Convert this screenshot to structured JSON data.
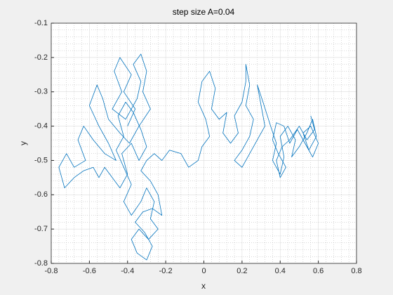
{
  "chart_data": {
    "type": "line",
    "title": "step size A=0.04",
    "x_label": "x",
    "y_label": "y",
    "x": [
      -0.4,
      -0.36,
      -0.42,
      -0.38,
      -0.44,
      -0.47,
      -0.43,
      -0.48,
      -0.41,
      -0.35,
      -0.33,
      -0.37,
      -0.33,
      -0.3,
      -0.32,
      -0.28,
      -0.34,
      -0.39,
      -0.44,
      -0.5,
      -0.53,
      -0.56,
      -0.6,
      -0.55,
      -0.5,
      -0.46,
      -0.52,
      -0.58,
      -0.63,
      -0.66,
      -0.62,
      -0.68,
      -0.72,
      -0.76,
      -0.73,
      -0.68,
      -0.63,
      -0.58,
      -0.55,
      -0.52,
      -0.48,
      -0.44,
      -0.4,
      -0.43,
      -0.38,
      -0.34,
      -0.3,
      -0.33,
      -0.37,
      -0.41,
      -0.45,
      -0.42,
      -0.46,
      -0.42,
      -0.38,
      -0.42,
      -0.38,
      -0.33,
      -0.3,
      -0.26,
      -0.28,
      -0.24,
      -0.29,
      -0.34,
      -0.38,
      -0.35,
      -0.3,
      -0.27,
      -0.31,
      -0.36,
      -0.32,
      -0.27,
      -0.22,
      -0.24,
      -0.28,
      -0.33,
      -0.3,
      -0.26,
      -0.22,
      -0.18,
      -0.12,
      -0.08,
      -0.03,
      -0.01,
      0.03,
      0.01,
      -0.03,
      -0.01,
      0.03,
      0.06,
      0.04,
      0.08,
      0.12,
      0.1,
      0.14,
      0.18,
      0.16,
      0.2,
      0.22,
      0.22,
      0.24,
      0.22,
      0.26,
      0.24,
      0.2,
      0.16,
      0.2,
      0.24,
      0.28,
      0.32,
      0.3,
      0.28,
      0.31,
      0.35,
      0.38,
      0.36,
      0.4,
      0.42,
      0.4,
      0.44,
      0.48,
      0.46,
      0.5,
      0.54,
      0.57,
      0.59,
      0.55,
      0.52,
      0.56,
      0.6,
      0.57,
      0.53,
      0.49,
      0.45,
      0.42,
      0.38,
      0.36,
      0.39,
      0.43,
      0.4,
      0.38,
      0.41,
      0.45,
      0.5,
      0.54,
      0.58,
      0.56
    ],
    "series": [
      {
        "color": "#0072bd",
        "values": [
          -0.4,
          -0.35,
          -0.3,
          -0.25,
          -0.2,
          -0.24,
          -0.3,
          -0.35,
          -0.38,
          -0.32,
          -0.27,
          -0.22,
          -0.19,
          -0.24,
          -0.3,
          -0.35,
          -0.4,
          -0.45,
          -0.42,
          -0.38,
          -0.32,
          -0.28,
          -0.34,
          -0.4,
          -0.45,
          -0.5,
          -0.48,
          -0.44,
          -0.4,
          -0.44,
          -0.5,
          -0.52,
          -0.48,
          -0.52,
          -0.58,
          -0.55,
          -0.53,
          -0.52,
          -0.55,
          -0.52,
          -0.55,
          -0.58,
          -0.54,
          -0.48,
          -0.45,
          -0.5,
          -0.46,
          -0.41,
          -0.36,
          -0.33,
          -0.37,
          -0.43,
          -0.47,
          -0.52,
          -0.57,
          -0.62,
          -0.66,
          -0.62,
          -0.58,
          -0.62,
          -0.67,
          -0.7,
          -0.73,
          -0.7,
          -0.73,
          -0.77,
          -0.79,
          -0.75,
          -0.71,
          -0.68,
          -0.65,
          -0.64,
          -0.66,
          -0.6,
          -0.56,
          -0.53,
          -0.5,
          -0.48,
          -0.5,
          -0.47,
          -0.48,
          -0.52,
          -0.5,
          -0.46,
          -0.43,
          -0.38,
          -0.33,
          -0.27,
          -0.24,
          -0.29,
          -0.35,
          -0.38,
          -0.36,
          -0.42,
          -0.45,
          -0.42,
          -0.37,
          -0.33,
          -0.27,
          -0.22,
          -0.28,
          -0.34,
          -0.38,
          -0.43,
          -0.47,
          -0.5,
          -0.52,
          -0.48,
          -0.44,
          -0.4,
          -0.34,
          -0.28,
          -0.33,
          -0.4,
          -0.45,
          -0.5,
          -0.54,
          -0.49,
          -0.43,
          -0.4,
          -0.44,
          -0.49,
          -0.46,
          -0.42,
          -0.38,
          -0.43,
          -0.47,
          -0.42,
          -0.4,
          -0.45,
          -0.49,
          -0.45,
          -0.41,
          -0.45,
          -0.4,
          -0.39,
          -0.44,
          -0.48,
          -0.52,
          -0.55,
          -0.5,
          -0.46,
          -0.44,
          -0.4,
          -0.44,
          -0.41,
          -0.37
        ]
      }
    ],
    "xlim": [
      -0.8,
      0.8
    ],
    "xticks": [
      -0.8,
      -0.6,
      -0.4,
      -0.2,
      0,
      0.2,
      0.4,
      0.6,
      0.8
    ],
    "ylim": [
      -0.8,
      -0.1
    ],
    "yticks": [
      -0.8,
      -0.7,
      -0.6,
      -0.5,
      -0.4,
      -0.3,
      -0.2,
      -0.1
    ],
    "grid": true,
    "minor_grid": true
  }
}
